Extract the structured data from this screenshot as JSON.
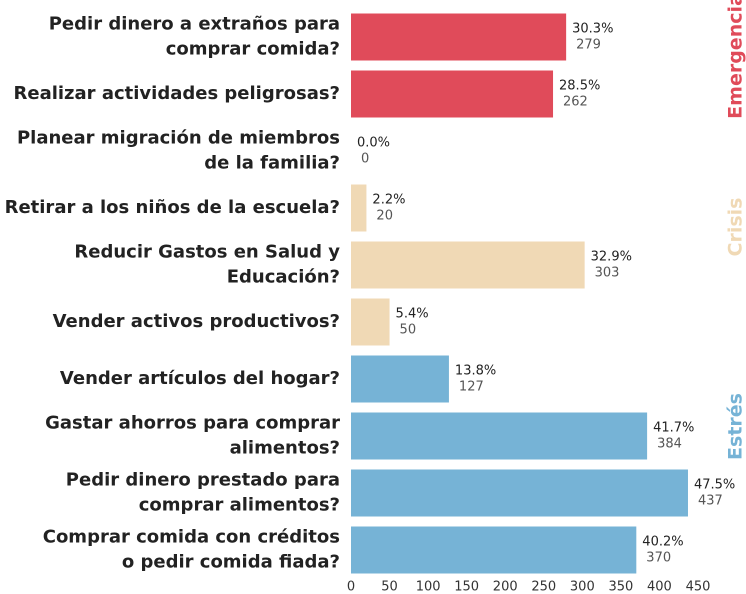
{
  "chart_data": {
    "type": "hbar",
    "series": [
      {
        "name": "Emergencia",
        "color": "#e04b5a",
        "categories": [
          [
            "Pedir dinero a extraños para",
            "comprar comida?"
          ],
          [
            "Realizar actividades peligrosas?"
          ],
          [
            "Planear migración de miembros",
            "de la familia?"
          ]
        ],
        "values": [
          279,
          262,
          0
        ],
        "percent_labels": [
          "30.3%",
          "28.5%",
          "0.0%"
        ]
      },
      {
        "name": "Crisis",
        "color": "#f0d9b5",
        "categories": [
          [
            "Retirar a los niños de la escuela?"
          ],
          [
            "Reducir Gastos en Salud y",
            "Educación?"
          ],
          [
            "Vender activos productivos?"
          ]
        ],
        "values": [
          20,
          303,
          50
        ],
        "percent_labels": [
          "2.2%",
          "32.9%",
          "5.4%"
        ]
      },
      {
        "name": "Estrés",
        "color": "#76b3d6",
        "categories": [
          [
            "Vender artículos del hogar?"
          ],
          [
            "Gastar ahorros para comprar",
            "alimentos?"
          ],
          [
            "Pedir dinero prestado para",
            "comprar alimentos?"
          ],
          [
            "Comprar comida con créditos",
            "o pedir comida fiada?"
          ]
        ],
        "values": [
          127,
          384,
          437,
          370
        ],
        "percent_labels": [
          "13.8%",
          "41.7%",
          "47.5%",
          "40.2%"
        ]
      }
    ],
    "xlim": [
      0,
      450
    ],
    "xticks": [
      0,
      50,
      100,
      150,
      200,
      250,
      300,
      350,
      400,
      450
    ]
  }
}
